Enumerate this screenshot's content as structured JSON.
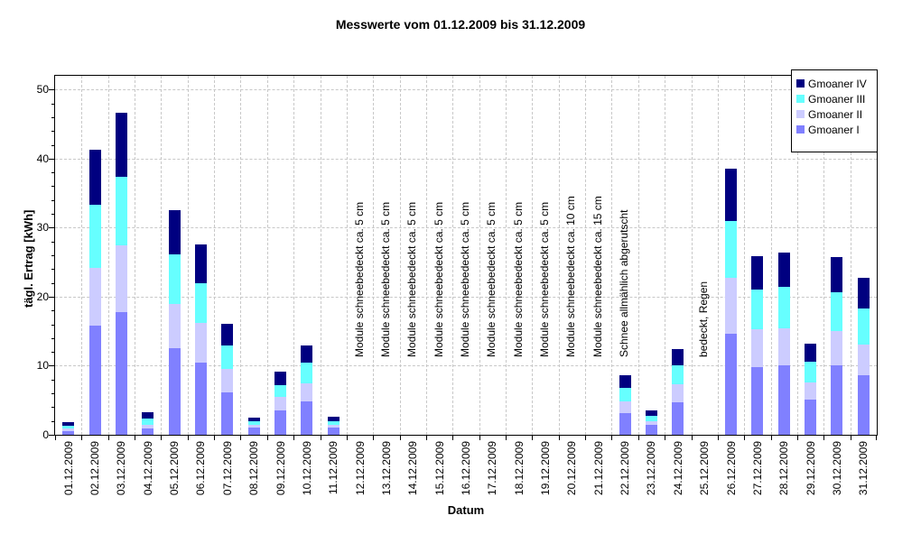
{
  "chart_data": {
    "type": "bar",
    "stacked": true,
    "title": "Messwerte vom 01.12.2009 bis 31.12.2009",
    "xlabel": "Datum",
    "ylabel": "tägl. Ertrag [kWh]",
    "ylim": [
      0,
      52
    ],
    "yticks": [
      0,
      10,
      20,
      30,
      40,
      50
    ],
    "y_minor_tick_step": 2,
    "grid": "dashed horizontal at y major ticks and dashed vertical at day boundaries",
    "legend_position": "top-right",
    "legend_order": [
      "Gmoaner IV",
      "Gmoaner III",
      "Gmoaner II",
      "Gmoaner I"
    ],
    "colors": {
      "background": "#FFFFFF",
      "grid": "#C8C8C8",
      "axis": "#000000",
      "text": "#000000"
    },
    "categories": [
      "01.12.2009",
      "02.12.2009",
      "03.12.2009",
      "04.12.2009",
      "05.12.2009",
      "06.12.2009",
      "07.12.2009",
      "08.12.2009",
      "09.12.2009",
      "10.12.2009",
      "11.12.2009",
      "12.12.2009",
      "13.12.2009",
      "14.12.2009",
      "15.12.2009",
      "16.12.2009",
      "17.12.2009",
      "18.12.2009",
      "19.12.2009",
      "20.12.2009",
      "21.12.2009",
      "22.12.2009",
      "23.12.2009",
      "24.12.2009",
      "25.12.2009",
      "26.12.2009",
      "27.12.2009",
      "28.12.2009",
      "29.12.2009",
      "30.12.2009",
      "31.12.2009"
    ],
    "series": [
      {
        "name": "Gmoaner I",
        "color": "#8080FF",
        "values": [
          0.5,
          15.8,
          17.8,
          0.9,
          12.5,
          10.5,
          6.2,
          1.1,
          3.5,
          4.9,
          1.0,
          0,
          0,
          0,
          0,
          0,
          0,
          0,
          0,
          0,
          0,
          3.2,
          1.4,
          4.7,
          0,
          14.7,
          9.8,
          10.1,
          5.1,
          10.0,
          8.6
        ]
      },
      {
        "name": "Gmoaner II",
        "color": "#CCCCFF",
        "values": [
          0.4,
          8.4,
          9.6,
          0.6,
          6.5,
          5.7,
          3.3,
          0.3,
          2.0,
          2.5,
          0.5,
          0,
          0,
          0,
          0,
          0,
          0,
          0,
          0,
          0,
          0,
          1.7,
          0.6,
          2.6,
          0,
          8.0,
          5.5,
          5.3,
          2.5,
          5.0,
          4.5
        ]
      },
      {
        "name": "Gmoaner III",
        "color": "#66FFFF",
        "values": [
          0.4,
          9.1,
          10.0,
          0.9,
          7.1,
          5.8,
          3.4,
          0.5,
          1.7,
          3.0,
          0.5,
          0,
          0,
          0,
          0,
          0,
          0,
          0,
          0,
          0,
          0,
          1.9,
          0.7,
          2.8,
          0,
          8.3,
          5.7,
          6.0,
          3.0,
          5.6,
          5.2
        ]
      },
      {
        "name": "Gmoaner IV",
        "color": "#000080",
        "values": [
          0.5,
          8.0,
          9.3,
          0.9,
          6.5,
          5.6,
          3.2,
          0.6,
          2.0,
          2.6,
          0.6,
          0,
          0,
          0,
          0,
          0,
          0,
          0,
          0,
          0,
          0,
          1.8,
          0.8,
          2.3,
          0,
          7.6,
          4.9,
          5.0,
          2.6,
          5.1,
          4.5
        ]
      }
    ],
    "annotations": [
      {
        "category": "12.12.2009",
        "text": "Module schneebedeckt ca. 5 cm"
      },
      {
        "category": "13.12.2009",
        "text": "Module schneebedeckt ca. 5 cm"
      },
      {
        "category": "14.12.2009",
        "text": "Module schneebedeckt ca. 5 cm"
      },
      {
        "category": "15.12.2009",
        "text": "Module schneebedeckt ca. 5 cm"
      },
      {
        "category": "16.12.2009",
        "text": "Module schneebedeckt ca. 5 cm"
      },
      {
        "category": "17.12.2009",
        "text": "Module schneebedeckt ca. 5 cm"
      },
      {
        "category": "18.12.2009",
        "text": "Module schneebedeckt ca. 5 cm"
      },
      {
        "category": "19.12.2009",
        "text": "Module schneebedeckt ca. 5 cm"
      },
      {
        "category": "20.12.2009",
        "text": "Module schneebedeckt ca. 10 cm"
      },
      {
        "category": "21.12.2009",
        "text": "Module schneebedeckt ca. 15 cm"
      },
      {
        "category": "22.12.2009",
        "text": "Schnee allmählich abgerutscht"
      },
      {
        "category": "25.12.2009",
        "text": "bedeckt, Regen"
      }
    ]
  }
}
